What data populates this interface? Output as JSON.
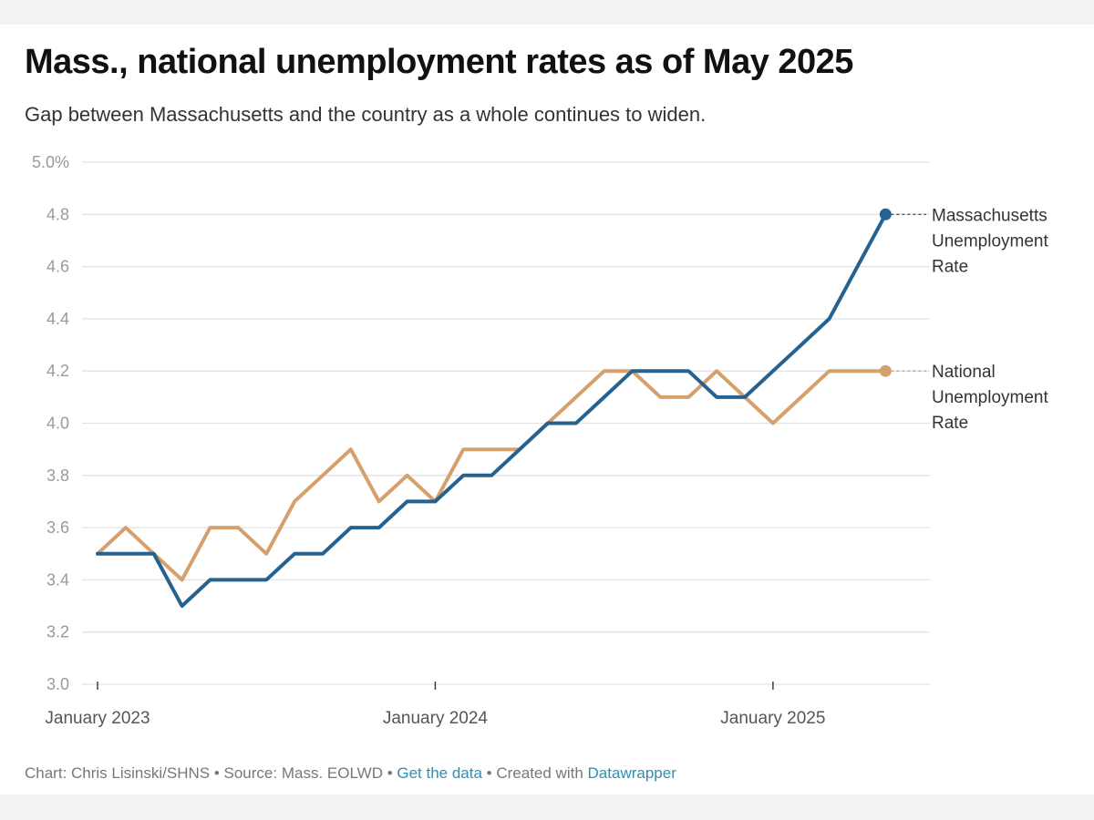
{
  "header": {
    "title": "Mass., national unemployment rates as of May 2025",
    "subtitle": "Gap between Massachusetts and the country as a whole continues to widen."
  },
  "footer": {
    "chart_credit": "Chart: Chris Lisinski/SHNS",
    "separator": " • ",
    "source": "Source: Mass. EOLWD",
    "get_data_link": "Get the data",
    "created_with": "Created with ",
    "datawrapper_link": "Datawrapper"
  },
  "colors": {
    "massachusetts": "#26628f",
    "national": "#d6a06c",
    "link": "#2e8fb0"
  },
  "chart_data": {
    "type": "line",
    "title": "Mass., national unemployment rates as of May 2025",
    "subtitle": "Gap between Massachusetts and the country as a whole continues to widen.",
    "xlabel": "",
    "ylabel": "",
    "ylim": [
      3.0,
      5.0
    ],
    "yticks": [
      {
        "value": 3.0,
        "label": "3.0"
      },
      {
        "value": 3.2,
        "label": "3.2"
      },
      {
        "value": 3.4,
        "label": "3.4"
      },
      {
        "value": 3.6,
        "label": "3.6"
      },
      {
        "value": 3.8,
        "label": "3.8"
      },
      {
        "value": 4.0,
        "label": "4.0"
      },
      {
        "value": 4.2,
        "label": "4.2"
      },
      {
        "value": 4.4,
        "label": "4.4"
      },
      {
        "value": 4.6,
        "label": "4.6"
      },
      {
        "value": 4.8,
        "label": "4.8"
      },
      {
        "value": 5.0,
        "label": "5.0%"
      }
    ],
    "xticks": [
      {
        "index": 0,
        "label": "January 2023"
      },
      {
        "index": 12,
        "label": "January 2024"
      },
      {
        "index": 24,
        "label": "January 2025"
      }
    ],
    "grid": true,
    "legend": "direct labels at line ends (right)",
    "x": [
      "2023-01",
      "2023-02",
      "2023-03",
      "2023-04",
      "2023-05",
      "2023-06",
      "2023-07",
      "2023-08",
      "2023-09",
      "2023-10",
      "2023-11",
      "2023-12",
      "2024-01",
      "2024-02",
      "2024-03",
      "2024-04",
      "2024-05",
      "2024-06",
      "2024-07",
      "2024-08",
      "2024-09",
      "2024-10",
      "2024-11",
      "2024-12",
      "2025-01",
      "2025-02",
      "2025-03",
      "2025-04",
      "2025-05"
    ],
    "series": [
      {
        "name": "National Unemployment Rate",
        "label_lines": [
          "National",
          "Unemployment",
          "Rate"
        ],
        "color_key": "national",
        "values": [
          3.5,
          3.6,
          3.5,
          3.4,
          3.6,
          3.6,
          3.5,
          3.7,
          3.8,
          3.9,
          3.7,
          3.8,
          3.7,
          3.9,
          3.9,
          3.9,
          4.0,
          4.1,
          4.2,
          4.2,
          4.1,
          4.1,
          4.2,
          4.1,
          4.0,
          4.1,
          4.2,
          4.2,
          4.2
        ]
      },
      {
        "name": "Massachusetts Unemployment Rate",
        "label_lines": [
          "Massachusetts",
          "Unemployment",
          "Rate"
        ],
        "color_key": "massachusetts",
        "values": [
          3.5,
          3.5,
          3.5,
          3.3,
          3.4,
          3.4,
          3.4,
          3.5,
          3.5,
          3.6,
          3.6,
          3.7,
          3.7,
          3.8,
          3.8,
          3.9,
          4.0,
          4.0,
          4.1,
          4.2,
          4.2,
          4.2,
          4.1,
          4.1,
          4.2,
          4.3,
          4.4,
          4.6,
          4.8
        ]
      }
    ]
  }
}
